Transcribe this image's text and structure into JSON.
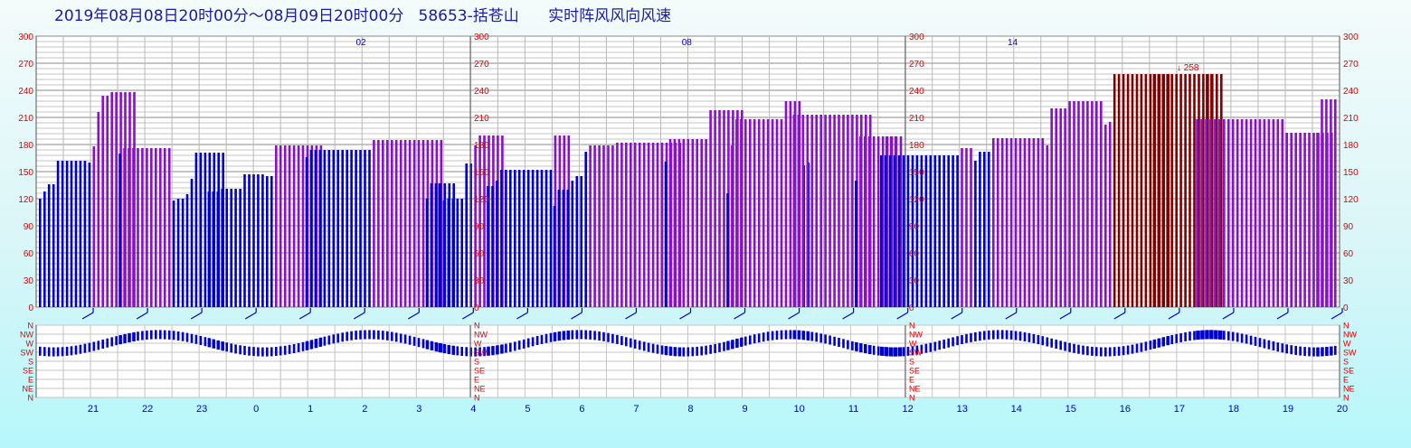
{
  "title": "2019年08月08日20时00分～08月09日20时00分   58653-括苍山      实时阵风风向风速",
  "chart_data": {
    "type": "bar",
    "title": "2019年08月08日20时00分～08月09日20时00分   58653-括苍山      实时阵风风向风速",
    "ylim": [
      0,
      300
    ],
    "y_ticks": [
      "0",
      "30",
      "60",
      "90",
      "120",
      "150",
      "180",
      "210",
      "240",
      "270",
      "300"
    ],
    "direction_ticks": [
      "N",
      "NW",
      "W",
      "SW",
      "S",
      "SE",
      "E",
      "NE",
      "N"
    ],
    "hour_labels": [
      "21",
      "22",
      "23",
      "0",
      "1",
      "2",
      "3",
      "4",
      "5",
      "6",
      "7",
      "8",
      "9",
      "10",
      "11",
      "12",
      "13",
      "14",
      "15",
      "16",
      "17",
      "18",
      "19",
      "20"
    ],
    "top_markers": [
      "02",
      "08",
      "14"
    ],
    "max_label": "258",
    "colors": {
      "low": "#0000cc",
      "mid": "#8a10c8",
      "high": "#800000",
      "axis": "#e00000",
      "grid": "#9a9a9a"
    },
    "segments": [
      [
        120,
        128,
        136,
        136,
        162,
        162,
        162,
        162,
        162,
        162,
        162,
        160,
        178,
        216,
        234,
        234,
        238,
        238,
        238,
        238,
        238,
        238
      ],
      [
        170,
        176,
        176,
        176,
        176,
        176,
        176,
        176,
        176,
        176,
        176,
        176,
        118,
        120,
        120,
        125,
        142,
        171,
        171,
        171,
        171,
        171,
        171,
        171
      ],
      [
        128,
        128,
        128,
        131,
        131,
        131,
        131,
        131,
        147,
        147,
        147,
        147,
        147,
        145,
        145,
        179,
        179,
        179,
        179,
        179,
        179,
        179,
        179,
        179,
        179,
        179
      ],
      [
        166,
        174,
        174,
        174,
        174,
        174,
        174,
        174,
        174,
        174,
        174,
        174,
        174,
        174,
        174,
        185,
        185,
        185,
        185,
        185,
        185,
        185,
        185,
        185,
        185,
        185,
        185,
        185,
        185,
        185,
        185
      ],
      [
        120,
        137,
        137,
        137,
        137,
        137,
        137
      ],
      [
        137,
        118,
        120,
        120,
        120,
        120,
        159,
        159,
        179,
        190,
        190,
        190,
        190,
        190,
        190
      ],
      [
        134,
        134,
        140,
        152,
        152,
        152,
        152,
        152,
        152,
        152,
        152,
        152,
        152,
        152,
        152,
        190,
        190,
        190,
        190
      ],
      [
        112,
        130,
        130,
        130,
        140,
        145,
        145,
        172,
        179,
        179,
        179,
        179,
        179,
        179,
        182,
        182,
        182,
        182,
        182,
        182,
        182,
        182,
        182,
        182,
        182,
        182,
        182,
        182,
        182
      ],
      [
        161,
        186,
        186,
        186,
        186,
        186,
        186,
        186,
        186,
        186,
        218,
        218,
        218,
        218,
        218,
        218,
        218,
        218
      ],
      [
        126,
        179,
        208,
        208,
        208,
        208,
        208,
        208,
        208,
        208,
        208,
        208,
        208,
        228,
        228,
        228,
        228,
        157,
        160
      ],
      [
        213,
        213,
        213,
        213,
        213,
        213,
        213,
        213,
        213,
        213,
        213,
        213,
        213,
        213,
        213,
        213,
        213,
        213
      ],
      [
        140,
        189,
        189,
        189,
        189,
        189,
        189,
        189,
        189,
        189,
        189
      ],
      [
        189,
        189,
        189
      ],
      [
        168,
        168,
        168,
        168,
        168,
        168,
        168,
        168,
        168,
        168,
        168,
        168,
        168,
        168,
        168,
        168,
        168,
        168,
        176,
        176,
        176,
        162,
        172,
        172,
        172,
        187,
        187,
        187,
        187,
        187,
        187,
        187,
        187,
        187,
        187,
        187,
        187,
        179,
        220,
        220,
        220,
        220,
        228,
        228,
        228,
        228,
        228,
        228,
        228,
        228,
        202,
        205,
        258,
        258,
        258,
        258,
        258,
        258,
        258,
        258,
        258,
        258,
        258,
        258,
        258
      ],
      [
        258,
        258,
        258,
        258,
        258,
        258,
        258,
        258,
        258,
        258,
        258,
        258,
        258,
        258,
        258,
        258
      ],
      [
        258,
        258
      ],
      [
        208,
        208,
        208,
        208,
        208,
        208,
        208,
        208,
        208,
        208,
        208,
        208,
        208,
        208,
        208,
        208,
        208,
        208,
        208,
        208,
        193,
        193,
        193,
        193,
        193,
        193,
        193,
        193,
        193,
        193,
        193
      ],
      [
        193,
        230,
        230,
        230,
        230
      ]
    ]
  }
}
